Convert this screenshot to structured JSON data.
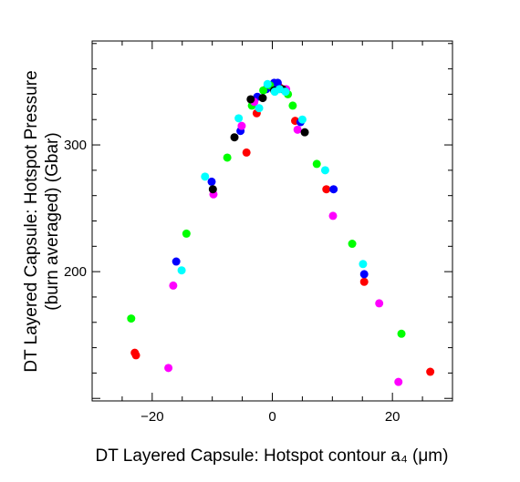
{
  "chart_data": {
    "type": "scatter",
    "title": "",
    "xlabel": "DT Layered Capsule: Hotspot contour a₄ (μm)",
    "ylabel_line1": "DT Layered Capsule: Hotspot Pressure",
    "ylabel_line2": "(burn averaged) (Gbar)",
    "xlim": [
      -30,
      30
    ],
    "ylim": [
      98,
      382
    ],
    "xticks": [
      -20,
      0,
      20
    ],
    "yticks": [
      200,
      300
    ],
    "grid": false,
    "legend": "none",
    "series": [
      {
        "color": "#ff0000",
        "points": [
          {
            "x": -22.9,
            "y": 136
          },
          {
            "x": -22.7,
            "y": 134
          },
          {
            "x": -4.3,
            "y": 294
          },
          {
            "x": -2.6,
            "y": 325
          },
          {
            "x": 1.1,
            "y": 346
          },
          {
            "x": 3.8,
            "y": 319
          },
          {
            "x": 9.0,
            "y": 265
          },
          {
            "x": 15.3,
            "y": 192
          },
          {
            "x": 26.3,
            "y": 121
          }
        ]
      },
      {
        "color": "#0000ff",
        "points": [
          {
            "x": -16.0,
            "y": 208
          },
          {
            "x": -10.1,
            "y": 271
          },
          {
            "x": -5.3,
            "y": 311
          },
          {
            "x": -2.5,
            "y": 338
          },
          {
            "x": -1.0,
            "y": 344
          },
          {
            "x": 0.3,
            "y": 349
          },
          {
            "x": 0.9,
            "y": 349
          },
          {
            "x": 4.7,
            "y": 318
          },
          {
            "x": 10.2,
            "y": 265
          },
          {
            "x": 15.3,
            "y": 198
          }
        ]
      },
      {
        "color": "#00ff00",
        "points": [
          {
            "x": -23.5,
            "y": 163
          },
          {
            "x": -14.3,
            "y": 230
          },
          {
            "x": -7.5,
            "y": 290
          },
          {
            "x": -3.4,
            "y": 331
          },
          {
            "x": -1.5,
            "y": 343
          },
          {
            "x": -0.4,
            "y": 347
          },
          {
            "x": 2.6,
            "y": 340
          },
          {
            "x": 3.4,
            "y": 331
          },
          {
            "x": 7.4,
            "y": 285
          },
          {
            "x": 13.3,
            "y": 222
          },
          {
            "x": 21.5,
            "y": 151
          }
        ]
      },
      {
        "color": "#ff00ff",
        "points": [
          {
            "x": -17.3,
            "y": 124
          },
          {
            "x": -16.5,
            "y": 189
          },
          {
            "x": -9.8,
            "y": 261
          },
          {
            "x": -5.1,
            "y": 315
          },
          {
            "x": -3.0,
            "y": 334
          },
          {
            "x": 2.3,
            "y": 344
          },
          {
            "x": 4.2,
            "y": 312
          },
          {
            "x": 10.1,
            "y": 244
          },
          {
            "x": 17.8,
            "y": 175
          },
          {
            "x": 21.0,
            "y": 113
          }
        ]
      },
      {
        "color": "#000000",
        "points": [
          {
            "x": -9.9,
            "y": 265
          },
          {
            "x": -6.3,
            "y": 306
          },
          {
            "x": -3.6,
            "y": 336
          },
          {
            "x": -1.6,
            "y": 337
          },
          {
            "x": 0.3,
            "y": 343
          },
          {
            "x": 1.7,
            "y": 344
          },
          {
            "x": 5.4,
            "y": 310
          }
        ]
      },
      {
        "color": "#00ffff",
        "points": [
          {
            "x": -15.1,
            "y": 201
          },
          {
            "x": -11.2,
            "y": 275
          },
          {
            "x": -5.6,
            "y": 321
          },
          {
            "x": -2.2,
            "y": 329
          },
          {
            "x": -0.8,
            "y": 348
          },
          {
            "x": 0.4,
            "y": 342
          },
          {
            "x": 1.2,
            "y": 344
          },
          {
            "x": 2.2,
            "y": 342
          },
          {
            "x": 5.0,
            "y": 320
          },
          {
            "x": 8.8,
            "y": 280
          },
          {
            "x": 15.1,
            "y": 206
          }
        ]
      }
    ]
  }
}
